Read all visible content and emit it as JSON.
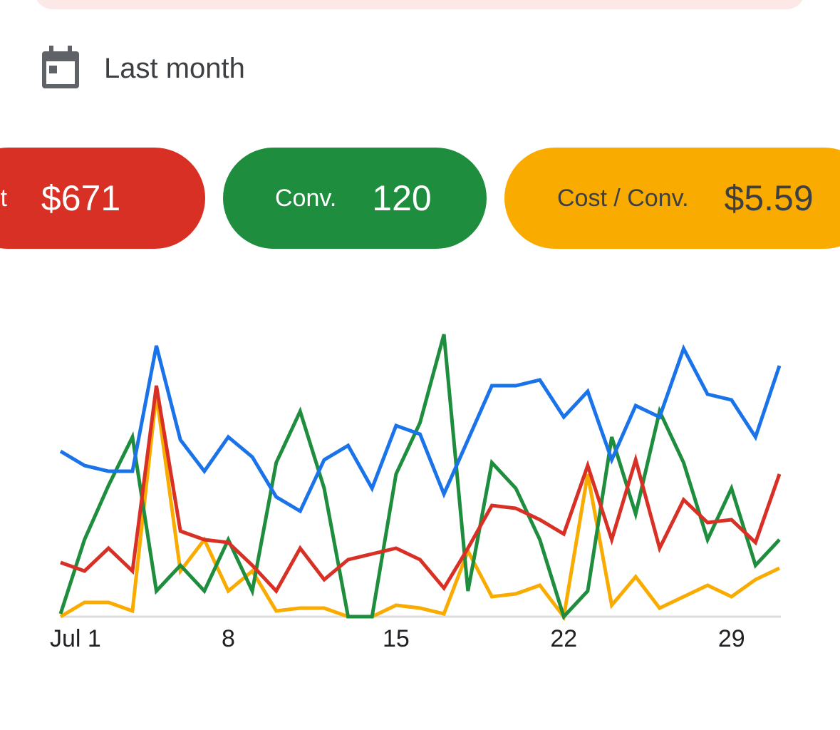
{
  "date_range": "Last month",
  "metrics": [
    {
      "label": "Cost",
      "value": "$671"
    },
    {
      "label": "Conv.",
      "value": "120"
    },
    {
      "label": "Cost / Conv.",
      "value": "$5.59"
    }
  ],
  "chart_data": {
    "type": "line",
    "categories": [
      "Jul 1",
      null,
      null,
      null,
      null,
      null,
      null,
      "8",
      null,
      null,
      null,
      null,
      null,
      null,
      "15",
      null,
      null,
      null,
      null,
      null,
      null,
      "22",
      null,
      null,
      null,
      null,
      null,
      null,
      "29",
      null,
      null
    ],
    "ylim": [
      0,
      100
    ],
    "series": [
      {
        "color": "#f9ab00",
        "values": [
          0,
          5,
          5,
          2,
          78,
          16,
          27,
          9,
          16,
          2,
          3,
          3,
          0,
          0,
          4,
          3,
          1,
          23,
          7,
          8,
          11,
          0,
          50,
          4,
          14,
          3,
          7,
          11,
          7,
          13,
          17
        ]
      },
      {
        "color": "#1e8e3e",
        "values": [
          1,
          27,
          46,
          63,
          9,
          18,
          9,
          27,
          9,
          54,
          72,
          45,
          0,
          0,
          50,
          68,
          99,
          9,
          54,
          45,
          27,
          0,
          9,
          63,
          36,
          72,
          54,
          27,
          45,
          18,
          27
        ]
      },
      {
        "color": "#d93025",
        "values": [
          19,
          16,
          24,
          16,
          81,
          30,
          27,
          26,
          18,
          9,
          24,
          13,
          20,
          22,
          24,
          20,
          10,
          24,
          39,
          38,
          34,
          29,
          53,
          27,
          55,
          24,
          41,
          33,
          34,
          26,
          50
        ]
      },
      {
        "color": "#1a73e8",
        "values": [
          58,
          53,
          51,
          51,
          95,
          62,
          51,
          63,
          56,
          42,
          37,
          55,
          60,
          45,
          67,
          64,
          43,
          62,
          81,
          81,
          83,
          70,
          79,
          55,
          74,
          70,
          94,
          78,
          76,
          63,
          88
        ]
      }
    ]
  }
}
